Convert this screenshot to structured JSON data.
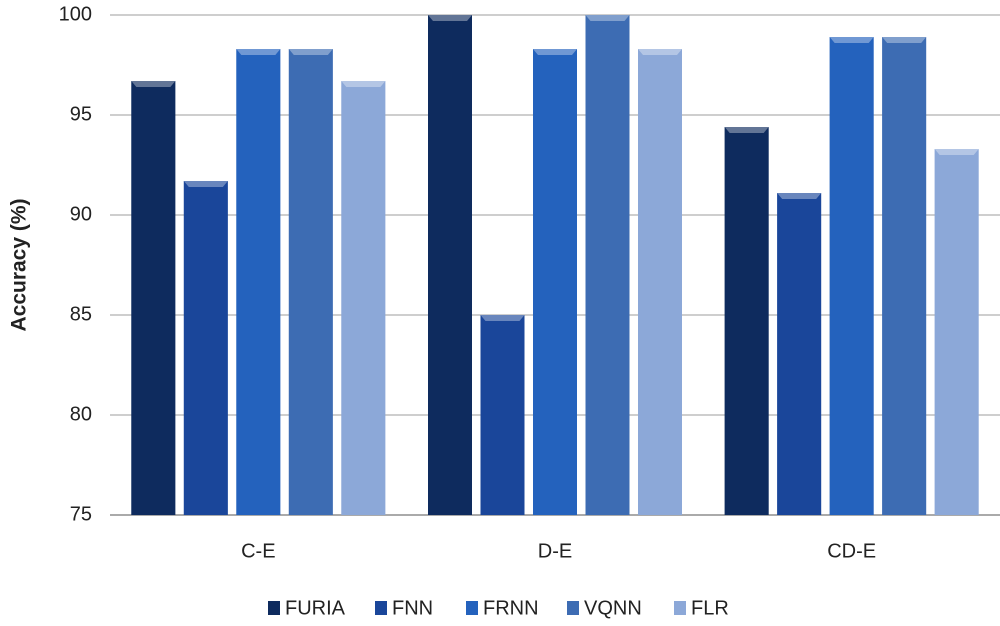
{
  "chart_data": {
    "type": "bar",
    "y_label": "Accuracy (%)",
    "categories": [
      "C-E",
      "D-E",
      "CD-E"
    ],
    "series": [
      {
        "name": "FURIA",
        "color": "#0e2b5e",
        "values": [
          96.7,
          100,
          94.4
        ]
      },
      {
        "name": "FNN",
        "color": "#1a469a",
        "values": [
          91.7,
          85,
          91.1
        ]
      },
      {
        "name": "FRNN",
        "color": "#2462bd",
        "values": [
          98.3,
          98.3,
          98.9
        ]
      },
      {
        "name": "VQNN",
        "color": "#3d6cb3",
        "values": [
          98.3,
          100,
          98.9
        ]
      },
      {
        "name": "FLR",
        "color": "#8ca8d8",
        "values": [
          96.7,
          98.3,
          93.3
        ]
      }
    ],
    "ylim": [
      75,
      100
    ],
    "yticks": [
      75,
      80,
      85,
      90,
      95,
      100
    ],
    "grid": true,
    "legend": "bottom"
  }
}
